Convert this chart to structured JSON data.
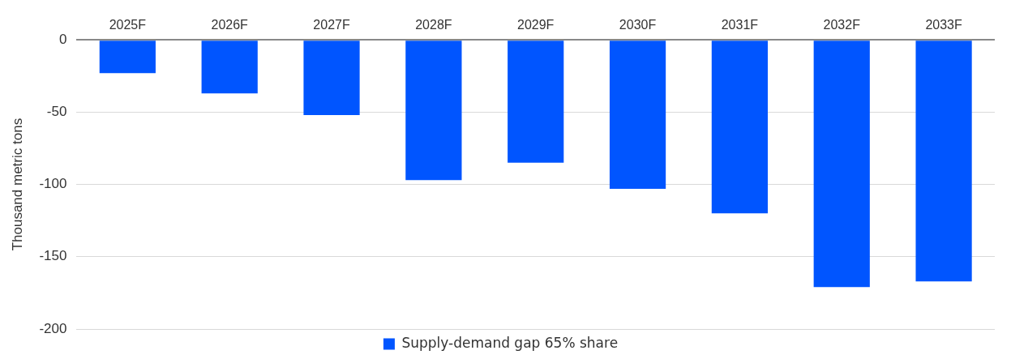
{
  "chart_data": {
    "type": "bar",
    "ylabel": "Thousand metric tons",
    "categories": [
      "2025F",
      "2026F",
      "2027F",
      "2028F",
      "2029F",
      "2030F",
      "2031F",
      "2032F",
      "2033F"
    ],
    "series": [
      {
        "name": "Supply-demand gap 65% share",
        "color": "#0055ff",
        "values": [
          -23,
          -37,
          -52,
          -97,
          -85,
          -103,
          -120,
          -171,
          -167
        ]
      }
    ],
    "ylim": [
      -200,
      0
    ],
    "yticks": [
      0,
      -50,
      -100,
      -150,
      -200
    ],
    "grid": "y",
    "legend": "bottom"
  }
}
